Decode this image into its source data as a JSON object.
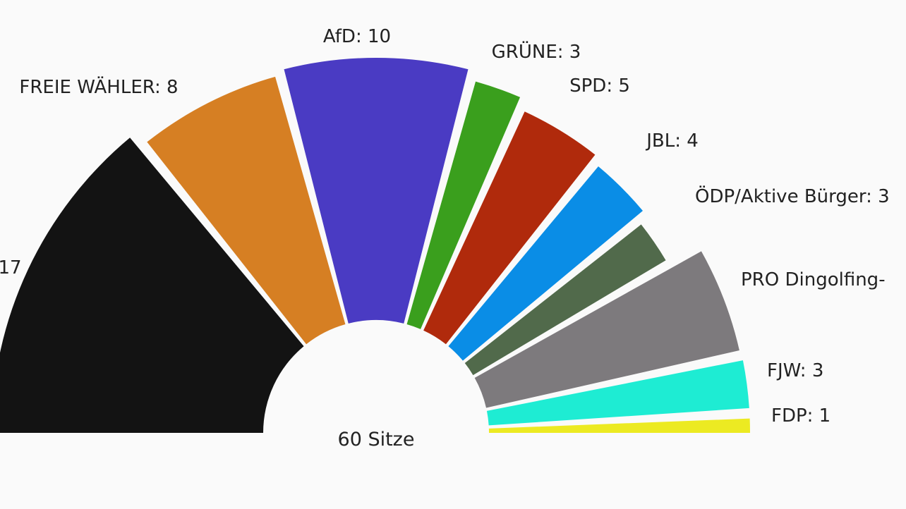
{
  "chart_data": {
    "type": "pie",
    "variant": "parliament-semicircle",
    "total_label": "60 Sitze",
    "total": 60,
    "series": [
      {
        "label": "17",
        "value": 17,
        "color": "#131313"
      },
      {
        "label": "FREIE WÄHLER: 8",
        "value": 8,
        "color": "#d67f23"
      },
      {
        "label": "AfD: 10",
        "value": 10,
        "color": "#4a3bc3"
      },
      {
        "label": "GRÜNE: 3",
        "value": 3,
        "color": "#3a9f1d"
      },
      {
        "label": "SPD: 5",
        "value": 5,
        "color": "#b02a0c"
      },
      {
        "label": "JBL: 4",
        "value": 4,
        "color": "#0a8de6"
      },
      {
        "label": "ÖDP/Aktive Bürger: 3",
        "value": 3,
        "color": "#516a4b"
      },
      {
        "label": "PRO Dingolfing-",
        "value": 6,
        "color": "#7d7a7d"
      },
      {
        "label": "FJW: 3",
        "value": 3,
        "color": "#1eecd3"
      },
      {
        "label": "FDP: 1",
        "value": 1,
        "color": "#ecea22"
      }
    ]
  }
}
